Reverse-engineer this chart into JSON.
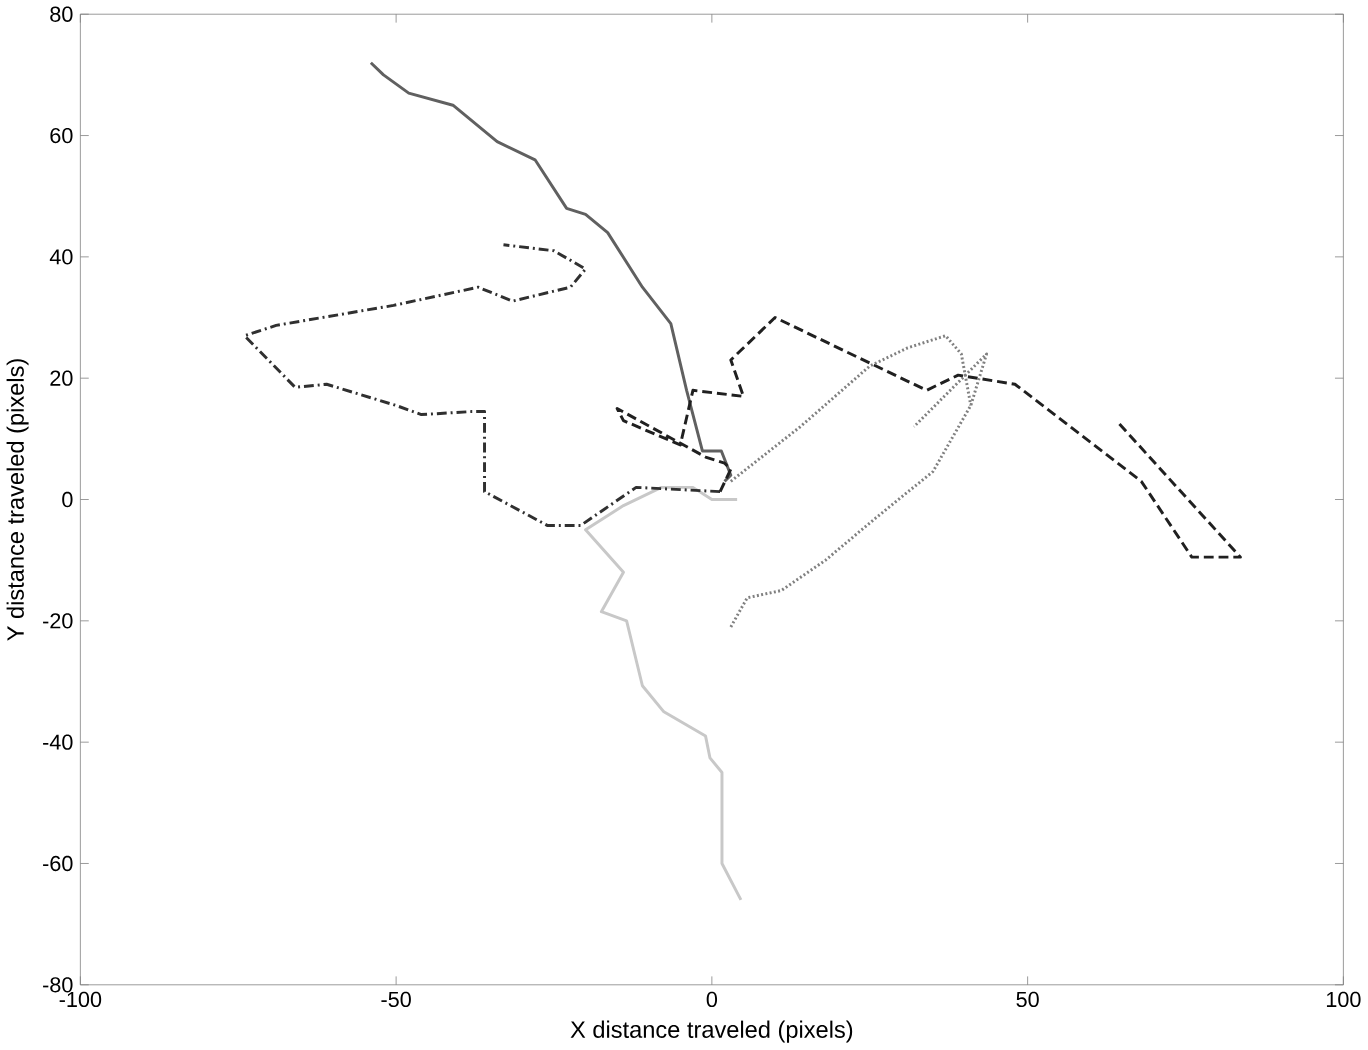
{
  "chart_data": {
    "type": "line",
    "xlabel": "X distance traveled (pixels)",
    "ylabel": "Y distance traveled (pixels)",
    "xlim": [
      -100,
      100
    ],
    "ylim": [
      -80,
      80
    ],
    "xticks": [
      -100,
      -50,
      0,
      50,
      100
    ],
    "yticks": [
      -80,
      -60,
      -40,
      -20,
      0,
      20,
      40,
      60,
      80
    ],
    "marker": "none",
    "series": [
      {
        "color": "#606060",
        "line_style": "solid",
        "x": [
          2,
          3,
          1.5,
          -1.5,
          -4,
          -6.5,
          -11,
          -16.5,
          -20,
          -23,
          -28,
          -34,
          -41,
          -48,
          -52,
          -54
        ],
        "values": [
          3,
          4,
          8,
          8,
          18,
          29,
          35,
          44,
          47,
          48,
          56,
          59,
          65,
          67,
          70,
          72
        ]
      },
      {
        "color": "#c8c8c8",
        "line_style": "solid",
        "x": [
          4,
          0,
          -3,
          -8,
          -14,
          -20,
          -14,
          -17.5,
          -13.5,
          -11,
          -7.6,
          -1,
          -0.3,
          1.6,
          1.6,
          4.6
        ],
        "values": [
          0,
          0,
          2,
          2,
          -1,
          -5,
          -12,
          -18.5,
          -20,
          -30.7,
          -35,
          -39,
          -42.6,
          -45,
          -60,
          -66
        ]
      },
      {
        "color": "#303030",
        "line_style": "dashdotted",
        "x": [
          1.3,
          -12,
          -20.8,
          -26,
          -36,
          -36,
          -38,
          -46,
          -50,
          -61,
          -66,
          -74,
          -69,
          -50.4,
          -37,
          -31.6,
          -22.4,
          -20,
          -25,
          -33
        ],
        "values": [
          1.3,
          2,
          -4.3,
          -4.3,
          1.3,
          14.5,
          14.5,
          14,
          15.5,
          19,
          18.5,
          27,
          28.7,
          32,
          35,
          32.7,
          35,
          38,
          41,
          42
        ]
      },
      {
        "color": "#202020",
        "line_style": "dashed",
        "x": [
          1.3,
          3,
          2,
          -1,
          -15,
          -14,
          -5,
          -3,
          5,
          3,
          10,
          34,
          39,
          48,
          68,
          76,
          83.7,
          64.5
        ],
        "values": [
          1.3,
          5,
          6,
          7,
          15,
          13,
          9,
          18,
          17,
          23,
          30,
          18,
          20.5,
          19,
          3,
          -9.5,
          -9.5,
          12.5
        ]
      },
      {
        "color": "#808080",
        "line_style": "dotted",
        "x": [
          3,
          14,
          25,
          31,
          37,
          39.5,
          41
        ],
        "values": [
          3,
          12,
          22,
          25,
          27,
          24,
          15.5
        ]
      },
      {
        "color": "#808080",
        "line_style": "dotted",
        "x": [
          3,
          5.6,
          11,
          18,
          26,
          35,
          41,
          43.5,
          32
        ],
        "values": [
          -21,
          -16.2,
          -15,
          -10,
          -3,
          4.6,
          15.5,
          24,
          12
        ]
      }
    ]
  }
}
